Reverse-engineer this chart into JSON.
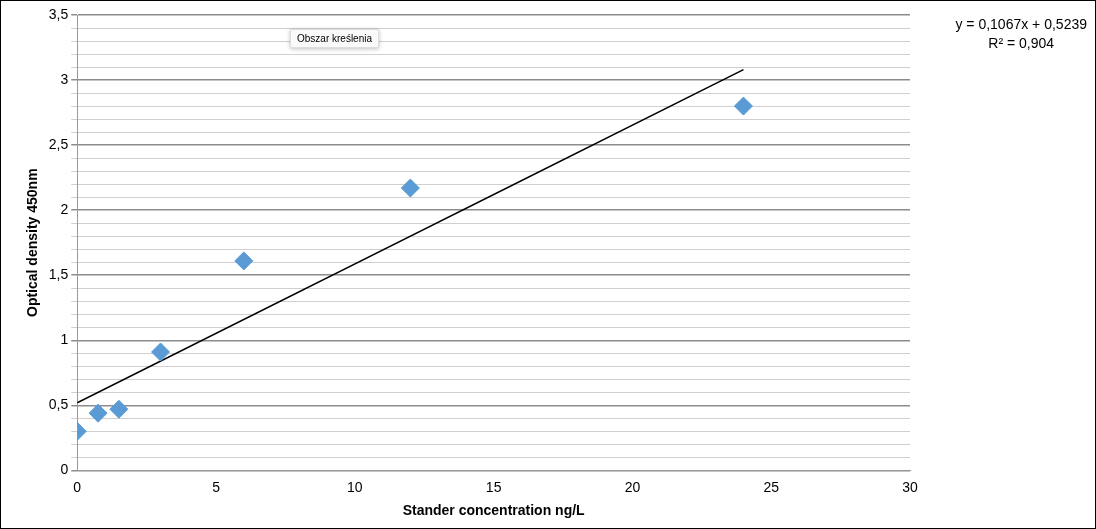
{
  "chart_data": {
    "type": "scatter",
    "xlabel": "Stander concentration ng/L",
    "ylabel": "Optical density 450nm",
    "x": [
      0,
      0.75,
      1.5,
      3,
      6,
      12,
      24
    ],
    "series": [
      {
        "color": "#5b9bd5",
        "marker": "diamond",
        "values": [
          0.3,
          0.44,
          0.47,
          0.91,
          1.61,
          2.17,
          2.8
        ]
      },
      {
        "type": "line",
        "color": "#000000",
        "marker": "none",
        "x": [
          0,
          24
        ],
        "values": [
          0.52,
          3.08
        ]
      }
    ],
    "xlim": [
      0,
      30
    ],
    "xticks": [
      0,
      5,
      10,
      15,
      20,
      25,
      30
    ],
    "ylim": [
      0,
      3.5
    ],
    "yticks": [
      0,
      {
        "value": 0.1,
        "label": null
      },
      {
        "value": 0.2,
        "label": null
      },
      {
        "value": 0.3,
        "label": null
      },
      {
        "value": 0.4,
        "label": null
      },
      {
        "value": 0.5,
        "label": "0,5"
      },
      {
        "value": 0.6,
        "label": null
      },
      {
        "value": 0.7,
        "label": null
      },
      {
        "value": 0.8,
        "label": null
      },
      {
        "value": 0.9,
        "label": null
      },
      1,
      {
        "value": 1.1,
        "label": null
      },
      {
        "value": 1.2,
        "label": null
      },
      {
        "value": 1.3,
        "label": null
      },
      {
        "value": 1.4,
        "label": null
      },
      {
        "value": 1.5,
        "label": "1,5"
      },
      {
        "value": 1.6,
        "label": null
      },
      {
        "value": 1.7,
        "label": null
      },
      {
        "value": 1.8,
        "label": null
      },
      {
        "value": 1.9,
        "label": null
      },
      2,
      {
        "value": 2.1,
        "label": null
      },
      {
        "value": 2.2,
        "label": null
      },
      {
        "value": 2.3,
        "label": null
      },
      {
        "value": 2.4,
        "label": null
      },
      {
        "value": 2.5,
        "label": "2,5"
      },
      {
        "value": 2.6,
        "label": null
      },
      {
        "value": 2.7,
        "label": null
      },
      {
        "value": 2.8,
        "label": null
      },
      {
        "value": 2.9,
        "label": null
      },
      3,
      {
        "value": 3.1,
        "label": null
      },
      {
        "value": 3.2,
        "label": null
      },
      {
        "value": 3.3,
        "label": null
      },
      {
        "value": 3.4,
        "label": null
      },
      {
        "value": 3.5,
        "label": "3,5"
      }
    ],
    "grid": "y",
    "line_style": "solid",
    "annotations": [
      "y = 0,1067x + 0,5239",
      "R² = 0,904",
      "Obszar kreślenia"
    ]
  }
}
